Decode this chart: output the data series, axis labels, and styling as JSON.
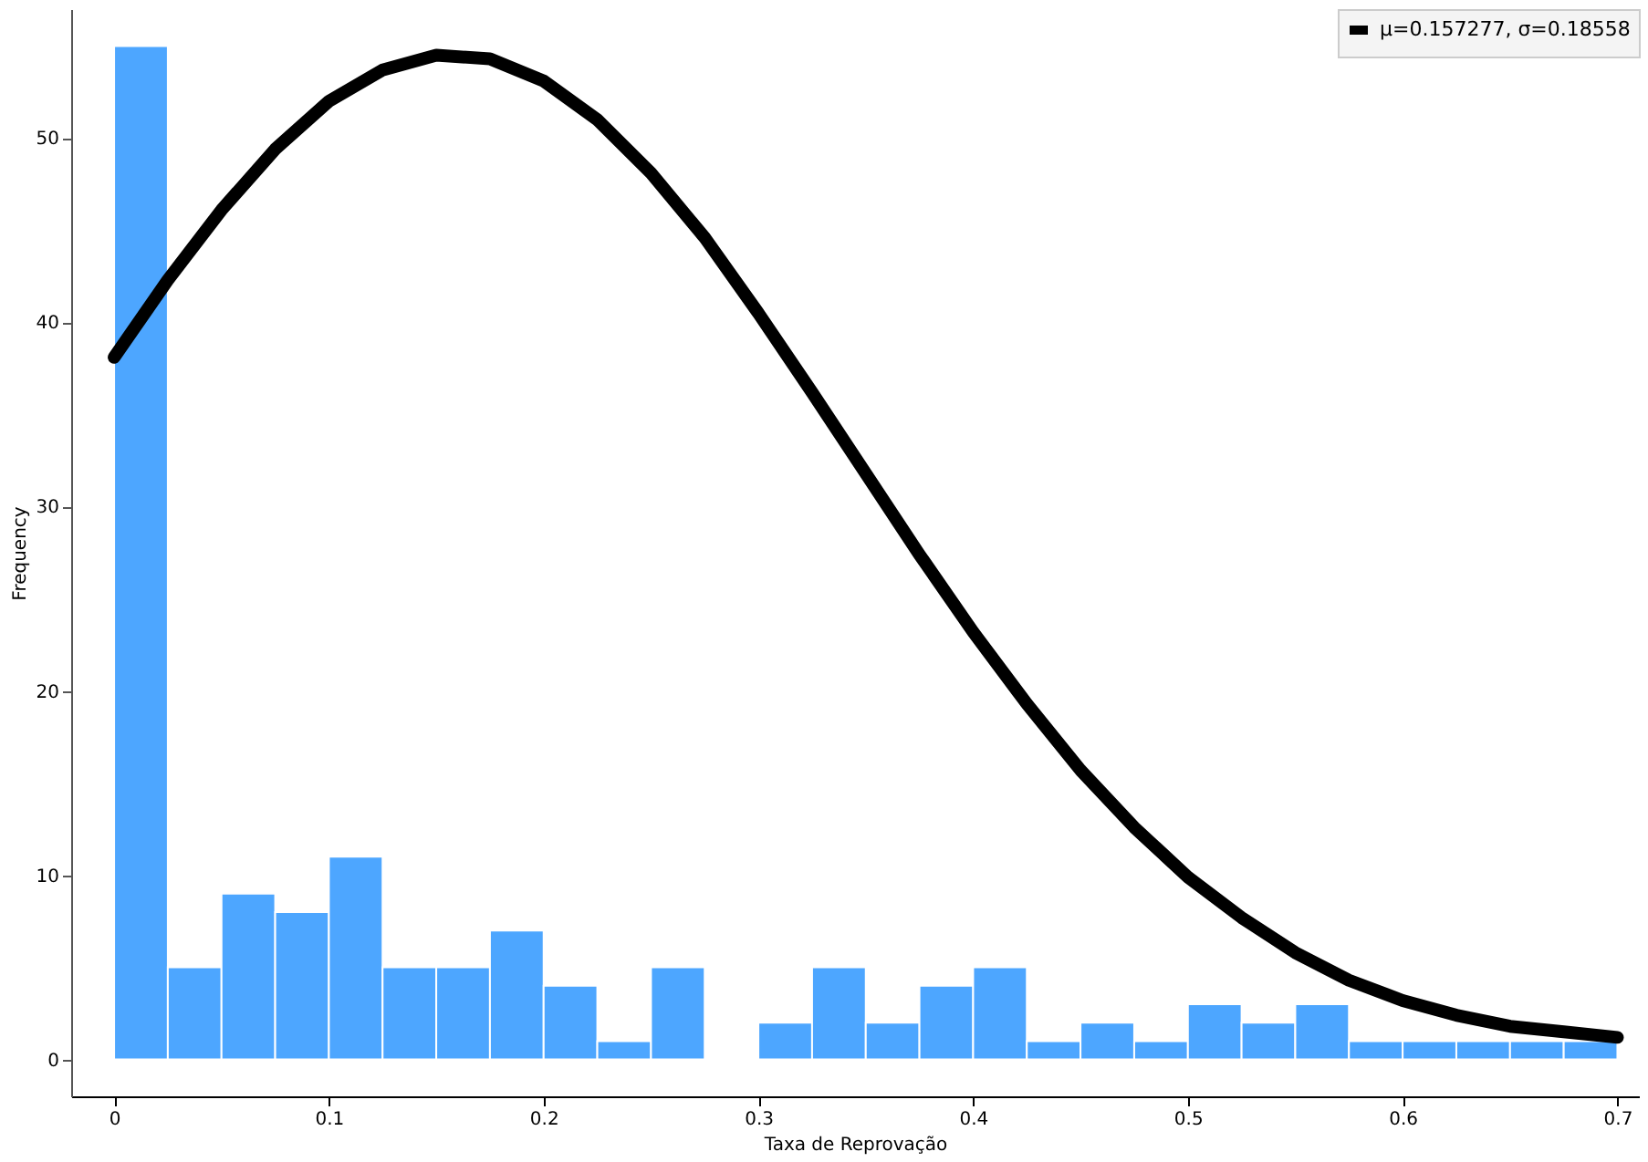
{
  "chart_data": {
    "type": "histogram",
    "xlabel": "Taxa de Reprovação",
    "ylabel": "Frequency",
    "bins": [
      0,
      0.025,
      0.05,
      0.075,
      0.1,
      0.125,
      0.15,
      0.175,
      0.2,
      0.225,
      0.25,
      0.275,
      0.3,
      0.325,
      0.35,
      0.375,
      0.4,
      0.425,
      0.45,
      0.475,
      0.5,
      0.525,
      0.55,
      0.575,
      0.6,
      0.625,
      0.65,
      0.675,
      0.7
    ],
    "values": [
      55,
      5,
      9,
      8,
      11,
      5,
      5,
      7,
      4,
      1,
      5,
      0,
      2,
      5,
      2,
      4,
      5,
      1,
      2,
      1,
      3,
      2,
      3,
      1,
      1,
      1,
      1,
      1
    ],
    "color": "#4da6ff",
    "series": [
      {
        "type": "line",
        "name": "μ=0.157277, σ=0.18558",
        "color": "#000000",
        "x": [
          0,
          0.025,
          0.05,
          0.075,
          0.1,
          0.125,
          0.15,
          0.175,
          0.2,
          0.225,
          0.25,
          0.275,
          0.3,
          0.325,
          0.35,
          0.375,
          0.4,
          0.425,
          0.45,
          0.475,
          0.5,
          0.525,
          0.55,
          0.575,
          0.6,
          0.625,
          0.65,
          0.675,
          0.7
        ],
        "values": [
          38.1,
          42.3,
          46.1,
          49.4,
          52.0,
          53.7,
          54.5,
          54.3,
          53.1,
          51.0,
          48.1,
          44.6,
          40.5,
          36.2,
          31.8,
          27.4,
          23.2,
          19.3,
          15.7,
          12.6,
          9.9,
          7.7,
          5.8,
          4.3,
          3.2,
          2.4,
          1.8,
          1.5,
          1.2
        ]
      }
    ],
    "xlim": [
      -0.02,
      0.71
    ],
    "xticks": [
      0,
      0.1,
      0.2,
      0.3,
      0.4,
      0.5,
      0.6,
      0.7
    ],
    "ylim": [
      -2,
      57
    ],
    "yticks": [
      0,
      10,
      20,
      30,
      40,
      50
    ],
    "grid": false,
    "legend": "top right"
  }
}
